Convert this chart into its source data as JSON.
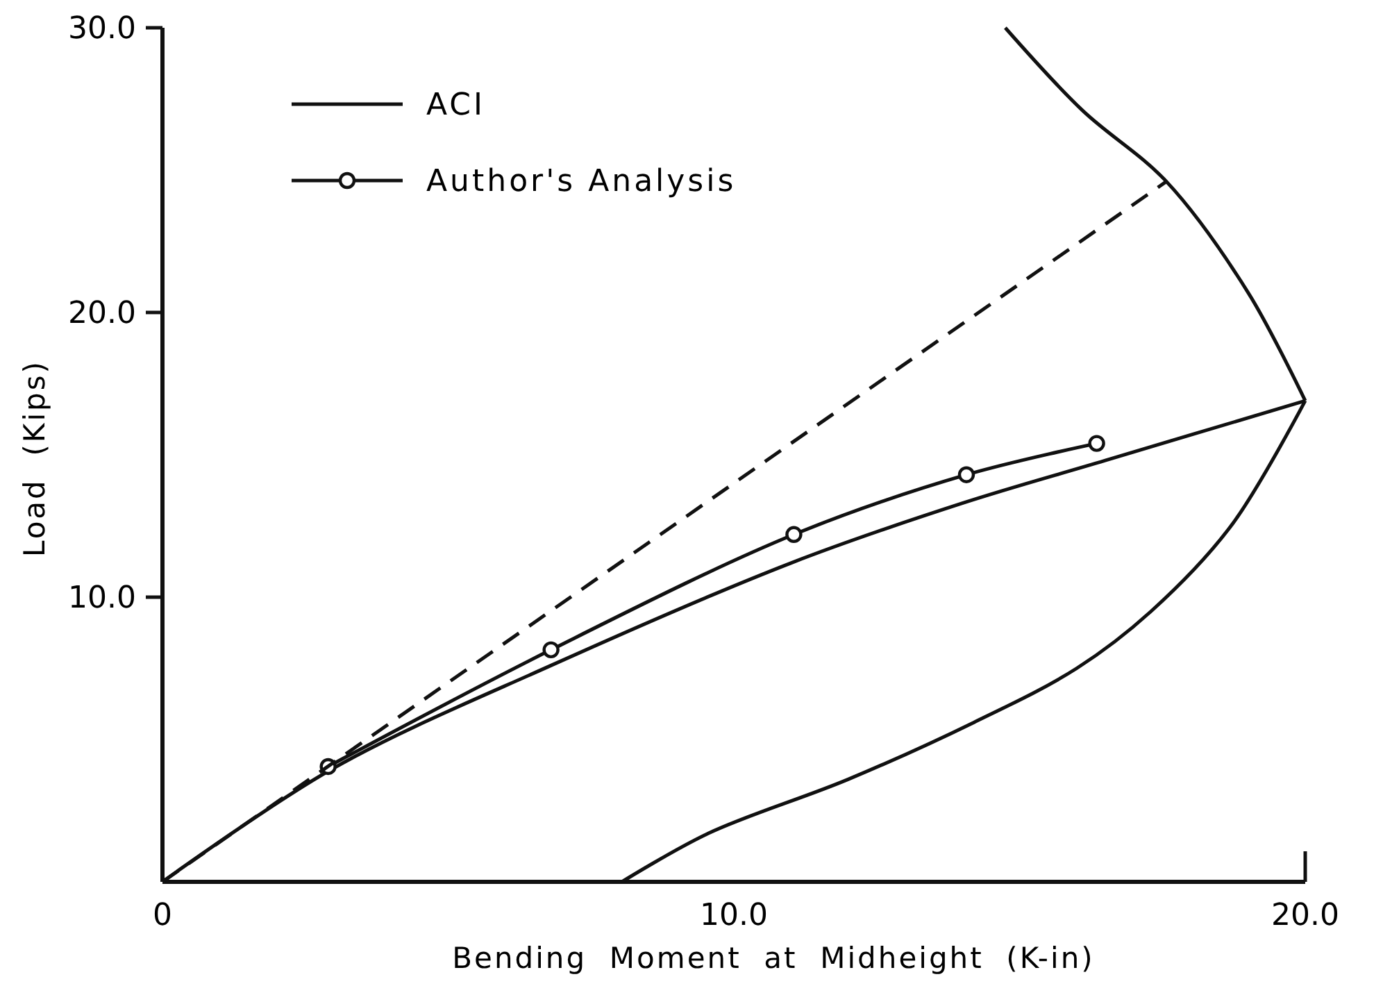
{
  "chart_data": {
    "type": "line",
    "xlabel": "Bending  Moment  at  Midheight  (K-in)",
    "ylabel": "Load  (Kips)",
    "xlim": [
      0,
      20
    ],
    "ylim": [
      0,
      30
    ],
    "xticks": [
      {
        "value": 0,
        "label": "0"
      },
      {
        "value": 10,
        "label": "10.0"
      },
      {
        "value": 20,
        "label": "20.0"
      }
    ],
    "yticks": [
      {
        "value": 10,
        "label": "10.0"
      },
      {
        "value": 20,
        "label": "20.0"
      },
      {
        "value": 30,
        "label": "30.0"
      }
    ],
    "grid": false,
    "legend": "top left",
    "series": [
      {
        "name": "ACI",
        "color": "#111111",
        "marker": "none",
        "line_style": "solid",
        "x": [
          0,
          3,
          6.8,
          11,
          14,
          16.5,
          20
        ],
        "values": [
          0,
          4,
          7.6,
          11.2,
          13.3,
          14.8,
          16.9
        ]
      },
      {
        "name": "Author's Analysis",
        "color": "#111111",
        "marker": "circle",
        "line_style": "solid",
        "x": [
          2.9,
          6.8,
          11.05,
          14.07,
          16.35
        ],
        "values": [
          4.05,
          8.15,
          12.2,
          14.3,
          15.4
        ]
      },
      {
        "color": "#111111",
        "marker": "none",
        "line_style": "dashed",
        "x": [
          0,
          17.57
        ],
        "values": [
          0,
          24.6
        ]
      },
      {
        "color": "#111111",
        "marker": "none",
        "line_style": "solid",
        "x": [
          8.04,
          9.55,
          12,
          14.2,
          16,
          17.3,
          18.7,
          20
        ],
        "values": [
          0,
          1.7,
          3.6,
          5.6,
          7.5,
          9.5,
          12.5,
          16.9
        ]
      },
      {
        "color": "#111111",
        "marker": "none",
        "line_style": "solid",
        "x": [
          20,
          19,
          17.57,
          16.1,
          14.75
        ],
        "values": [
          16.9,
          20.7,
          24.6,
          27.1,
          30
        ]
      }
    ]
  }
}
